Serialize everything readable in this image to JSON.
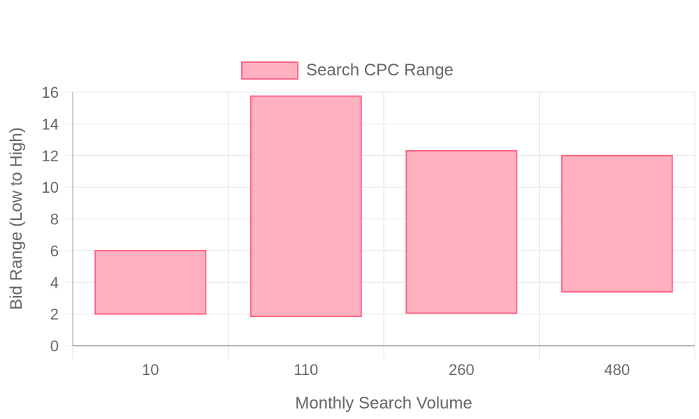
{
  "chart_data": {
    "type": "bar",
    "subtype": "floating-range",
    "categories": [
      "10",
      "110",
      "260",
      "480"
    ],
    "series": [
      {
        "name": "Search CPC Range",
        "ranges": [
          [
            2.0,
            6.0
          ],
          [
            1.85,
            15.75
          ],
          [
            2.05,
            12.3
          ],
          [
            3.4,
            12.0
          ]
        ]
      }
    ],
    "xlabel": "Monthly Search Volume",
    "ylabel": "Bid Range (Low to High)",
    "ylim": [
      0,
      16
    ],
    "yticks": [
      0,
      2,
      4,
      6,
      8,
      10,
      12,
      14,
      16
    ],
    "grid": true,
    "legend_position": "top",
    "colors": {
      "bar_fill": "#ffb1c1",
      "bar_stroke": "#ff6384",
      "grid": "#e5e5e5",
      "axis": "#999999",
      "text": "#666666"
    }
  }
}
